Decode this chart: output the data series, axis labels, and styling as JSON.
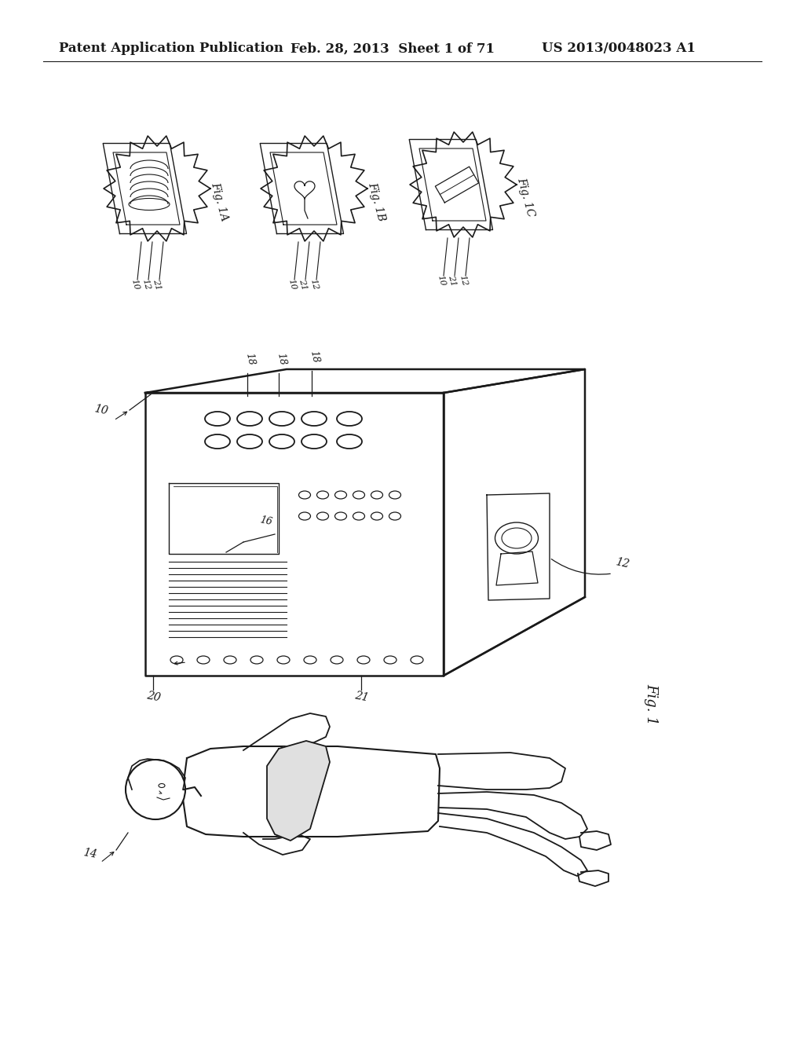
{
  "header_left": "Patent Application Publication",
  "header_mid": "Feb. 28, 2013  Sheet 1 of 71",
  "header_right": "US 2013/0048023 A1",
  "bg_color": "#ffffff",
  "line_color": "#1a1a1a",
  "header_fontsize": 12
}
